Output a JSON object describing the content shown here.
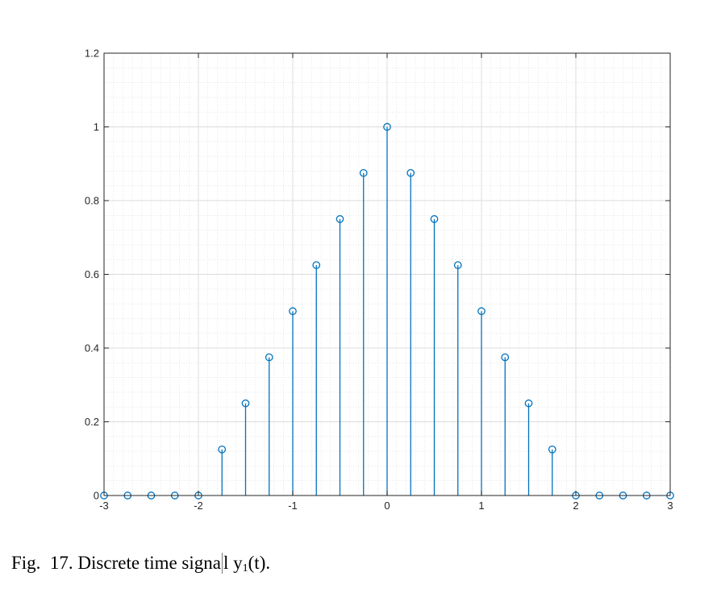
{
  "chart_data": {
    "type": "stem",
    "title": "",
    "xlabel": "",
    "ylabel": "",
    "xlim": [
      -3,
      3
    ],
    "ylim": [
      0,
      1.2
    ],
    "x_ticks": [
      "-3",
      "-2",
      "-1",
      "0",
      "1",
      "2",
      "3"
    ],
    "y_ticks": [
      "0",
      "0.2",
      "0.4",
      "0.6",
      "0.8",
      "1",
      "1.2"
    ],
    "grid": true,
    "minor_grid": true,
    "color": "#0072BD",
    "marker": "circle",
    "x": [
      -3,
      -2.75,
      -2.5,
      -2.25,
      -2,
      -1.75,
      -1.5,
      -1.25,
      -1,
      -0.75,
      -0.5,
      -0.25,
      0,
      0.25,
      0.5,
      0.75,
      1,
      1.25,
      1.5,
      1.75,
      2,
      2.25,
      2.5,
      2.75,
      3
    ],
    "y": [
      0,
      0,
      0,
      0,
      0,
      0.125,
      0.25,
      0.375,
      0.5,
      0.625,
      0.75,
      0.875,
      1,
      0.875,
      0.75,
      0.625,
      0.5,
      0.375,
      0.25,
      0.125,
      0,
      0,
      0,
      0,
      0
    ]
  },
  "caption": {
    "prefix": "Fig.  17. Discrete time signa",
    "after_cursor": "l y",
    "subscript": "1",
    "suffix": "(t)."
  }
}
